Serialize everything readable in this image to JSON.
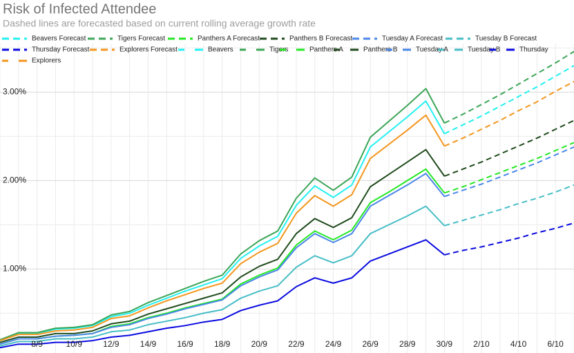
{
  "chart_data": {
    "type": "line",
    "title": "Risk of Infected Attendee",
    "subtitle": "Dashed lines are forecasted based on current rolling average growth rate",
    "categories": [
      null,
      null,
      "8/9",
      null,
      "10/9",
      null,
      "12/9",
      null,
      "14/9",
      null,
      "16/9",
      null,
      "18/9",
      null,
      "20/9",
      null,
      "22/9",
      null,
      "24/9",
      null,
      "26/9",
      null,
      "28/9",
      null,
      "30/9",
      null,
      "2/10",
      null,
      "4/10",
      null,
      "6/10",
      null
    ],
    "ylim": [
      0.05,
      3.55
    ],
    "yticks": [
      {
        "value": 1,
        "label": "1.00%"
      },
      {
        "value": 2,
        "label": "2.00%"
      },
      {
        "value": 3,
        "label": "3.00%"
      }
    ],
    "minor_yticks": [
      0.5,
      1.5,
      2.5,
      3.5
    ],
    "grid": true,
    "legend": "top",
    "series": [
      {
        "name": "Beavers Forecast",
        "color": "#22f0f0",
        "dashed": true,
        "values": [
          null,
          null,
          null,
          null,
          null,
          null,
          null,
          null,
          null,
          null,
          null,
          null,
          null,
          null,
          null,
          null,
          null,
          null,
          null,
          null,
          null,
          null,
          null,
          null,
          2.53,
          2.63,
          2.73,
          2.84,
          2.95,
          3.06,
          3.18,
          3.3
        ]
      },
      {
        "name": "Tigers Forecast",
        "color": "#3ba557",
        "dashed": true,
        "values": [
          null,
          null,
          null,
          null,
          null,
          null,
          null,
          null,
          null,
          null,
          null,
          null,
          null,
          null,
          null,
          null,
          null,
          null,
          null,
          null,
          null,
          null,
          null,
          null,
          2.65,
          2.75,
          2.86,
          2.97,
          3.09,
          3.21,
          3.33,
          3.46
        ]
      },
      {
        "name": "Panthers A Forecast",
        "color": "#22e822",
        "dashed": true,
        "values": [
          null,
          null,
          null,
          null,
          null,
          null,
          null,
          null,
          null,
          null,
          null,
          null,
          null,
          null,
          null,
          null,
          null,
          null,
          null,
          null,
          null,
          null,
          null,
          null,
          1.86,
          1.93,
          2.01,
          2.09,
          2.17,
          2.25,
          2.34,
          2.43
        ]
      },
      {
        "name": "Panthers B Forecast",
        "color": "#1f4a1c",
        "dashed": true,
        "values": [
          null,
          null,
          null,
          null,
          null,
          null,
          null,
          null,
          null,
          null,
          null,
          null,
          null,
          null,
          null,
          null,
          null,
          null,
          null,
          null,
          null,
          null,
          null,
          null,
          2.05,
          2.13,
          2.21,
          2.3,
          2.39,
          2.48,
          2.58,
          2.68
        ]
      },
      {
        "name": "Tuesday A Forecast",
        "color": "#4a86e8",
        "dashed": true,
        "values": [
          null,
          null,
          null,
          null,
          null,
          null,
          null,
          null,
          null,
          null,
          null,
          null,
          null,
          null,
          null,
          null,
          null,
          null,
          null,
          null,
          null,
          null,
          null,
          null,
          1.82,
          1.89,
          1.96,
          2.04,
          2.12,
          2.2,
          2.29,
          2.38
        ]
      },
      {
        "name": "Tuesday B Forecast",
        "color": "#46bdc6",
        "dashed": true,
        "values": [
          null,
          null,
          null,
          null,
          null,
          null,
          null,
          null,
          null,
          null,
          null,
          null,
          null,
          null,
          null,
          null,
          null,
          null,
          null,
          null,
          null,
          null,
          null,
          null,
          1.49,
          1.55,
          1.61,
          1.67,
          1.74,
          1.8,
          1.87,
          1.95
        ]
      },
      {
        "name": "Thursday Forecast",
        "color": "#0a0ae0",
        "dashed": true,
        "values": [
          null,
          null,
          null,
          null,
          null,
          null,
          null,
          null,
          null,
          null,
          null,
          null,
          null,
          null,
          null,
          null,
          null,
          null,
          null,
          null,
          null,
          null,
          null,
          null,
          1.16,
          1.21,
          1.25,
          1.3,
          1.35,
          1.41,
          1.46,
          1.52
        ]
      },
      {
        "name": "Explorers Forecast",
        "color": "#f4961e",
        "dashed": true,
        "values": [
          null,
          null,
          null,
          null,
          null,
          null,
          null,
          null,
          null,
          null,
          null,
          null,
          null,
          null,
          null,
          null,
          null,
          null,
          null,
          null,
          null,
          null,
          null,
          null,
          2.39,
          2.48,
          2.58,
          2.68,
          2.79,
          2.89,
          3.01,
          3.12
        ]
      },
      {
        "name": "Beavers",
        "color": "#22f0f0",
        "dashed": false,
        "values": [
          0.19,
          0.27,
          0.27,
          0.32,
          0.33,
          0.36,
          0.46,
          0.5,
          0.59,
          0.67,
          0.75,
          0.82,
          0.89,
          1.12,
          1.26,
          1.37,
          1.72,
          1.94,
          1.81,
          1.95,
          2.38,
          2.55,
          2.72,
          2.9,
          2.53,
          null,
          null,
          null,
          null,
          null,
          null,
          null
        ]
      },
      {
        "name": "Tigers",
        "color": "#3ba557",
        "dashed": false,
        "values": [
          0.2,
          0.28,
          0.28,
          0.33,
          0.34,
          0.37,
          0.48,
          0.52,
          0.62,
          0.7,
          0.78,
          0.86,
          0.93,
          1.17,
          1.32,
          1.43,
          1.8,
          2.03,
          1.89,
          2.04,
          2.49,
          2.67,
          2.85,
          3.04,
          2.65,
          null,
          null,
          null,
          null,
          null,
          null,
          null
        ]
      },
      {
        "name": "Panthers A",
        "color": "#22e822",
        "dashed": false,
        "values": [
          0.15,
          0.21,
          0.21,
          0.24,
          0.25,
          0.27,
          0.35,
          0.38,
          0.45,
          0.5,
          0.56,
          0.61,
          0.66,
          0.83,
          0.93,
          1.01,
          1.27,
          1.43,
          1.33,
          1.44,
          1.75,
          1.87,
          2.0,
          2.13,
          1.86,
          null,
          null,
          null,
          null,
          null,
          null,
          null
        ]
      },
      {
        "name": "Panthers B",
        "color": "#1f4a1c",
        "dashed": false,
        "values": [
          0.17,
          0.23,
          0.23,
          0.27,
          0.27,
          0.3,
          0.38,
          0.41,
          0.49,
          0.55,
          0.61,
          0.67,
          0.73,
          0.91,
          1.03,
          1.11,
          1.4,
          1.57,
          1.47,
          1.58,
          1.93,
          2.07,
          2.21,
          2.35,
          2.05,
          null,
          null,
          null,
          null,
          null,
          null,
          null
        ]
      },
      {
        "name": "Tuesday A",
        "color": "#4a86e8",
        "dashed": false,
        "values": [
          0.15,
          0.21,
          0.21,
          0.24,
          0.25,
          0.27,
          0.34,
          0.37,
          0.44,
          0.49,
          0.55,
          0.6,
          0.65,
          0.81,
          0.91,
          0.99,
          1.24,
          1.4,
          1.3,
          1.4,
          1.71,
          1.83,
          1.95,
          2.08,
          1.82,
          null,
          null,
          null,
          null,
          null,
          null,
          null
        ]
      },
      {
        "name": "Tuesday B",
        "color": "#46bdc6",
        "dashed": false,
        "values": [
          0.13,
          0.18,
          0.18,
          0.21,
          0.21,
          0.23,
          0.29,
          0.31,
          0.37,
          0.41,
          0.45,
          0.5,
          0.54,
          0.67,
          0.75,
          0.81,
          1.02,
          1.15,
          1.07,
          1.15,
          1.4,
          1.5,
          1.6,
          1.71,
          1.49,
          null,
          null,
          null,
          null,
          null,
          null,
          null
        ]
      },
      {
        "name": "Thursday",
        "color": "#0a0ae0",
        "dashed": false,
        "values": [
          0.11,
          0.15,
          0.15,
          0.17,
          0.17,
          0.19,
          0.23,
          0.25,
          0.29,
          0.33,
          0.36,
          0.4,
          0.43,
          0.53,
          0.59,
          0.64,
          0.8,
          0.9,
          0.84,
          0.9,
          1.09,
          1.17,
          1.25,
          1.33,
          1.16,
          null,
          null,
          null,
          null,
          null,
          null,
          null
        ]
      },
      {
        "name": "Explorers",
        "color": "#f4961e",
        "dashed": false,
        "values": [
          0.19,
          0.26,
          0.26,
          0.3,
          0.31,
          0.34,
          0.44,
          0.47,
          0.56,
          0.64,
          0.71,
          0.78,
          0.84,
          1.06,
          1.19,
          1.29,
          1.63,
          1.83,
          1.71,
          1.84,
          2.25,
          2.41,
          2.57,
          2.74,
          2.39,
          null,
          null,
          null,
          null,
          null,
          null,
          null
        ]
      }
    ]
  }
}
